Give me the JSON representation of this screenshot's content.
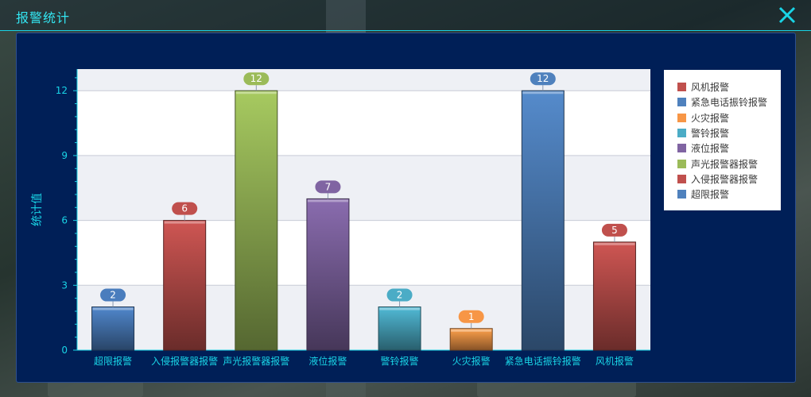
{
  "window": {
    "title": "报警统计",
    "close_icon": "close-icon"
  },
  "colors": {
    "accent": "#19d4e6",
    "panel_bg": "#001f57",
    "plot_band": "#eef0f5",
    "plot_bg": "#ffffff"
  },
  "chart_data": {
    "type": "bar",
    "title": "",
    "xlabel": "",
    "ylabel": "统计值",
    "ylim": [
      0,
      13
    ],
    "yticks": [
      0,
      3,
      6,
      9,
      12
    ],
    "grid": true,
    "legend_position": "right",
    "categories": [
      "超限报警",
      "入侵报警器报警",
      "声光报警器报警",
      "液位报警",
      "警铃报警",
      "火灾报警",
      "紧急电话振铃报警",
      "风机报警"
    ],
    "values": [
      2,
      6,
      12,
      7,
      2,
      1,
      12,
      5
    ],
    "bar_colors": [
      "#4a7dbd",
      "#c0504d",
      "#9bbb59",
      "#8064a2",
      "#4bacc6",
      "#f79646",
      "#4f81bd",
      "#c0504d"
    ],
    "legend": [
      {
        "label": "风机报警",
        "color": "#c0504d"
      },
      {
        "label": "紧急电话振铃报警",
        "color": "#4f81bd"
      },
      {
        "label": "火灾报警",
        "color": "#f79646"
      },
      {
        "label": "警铃报警",
        "color": "#4bacc6"
      },
      {
        "label": "液位报警",
        "color": "#8064a2"
      },
      {
        "label": "声光报警器报警",
        "color": "#9bbb59"
      },
      {
        "label": "入侵报警器报警",
        "color": "#c0504d"
      },
      {
        "label": "超限报警",
        "color": "#4f81bd"
      }
    ]
  }
}
